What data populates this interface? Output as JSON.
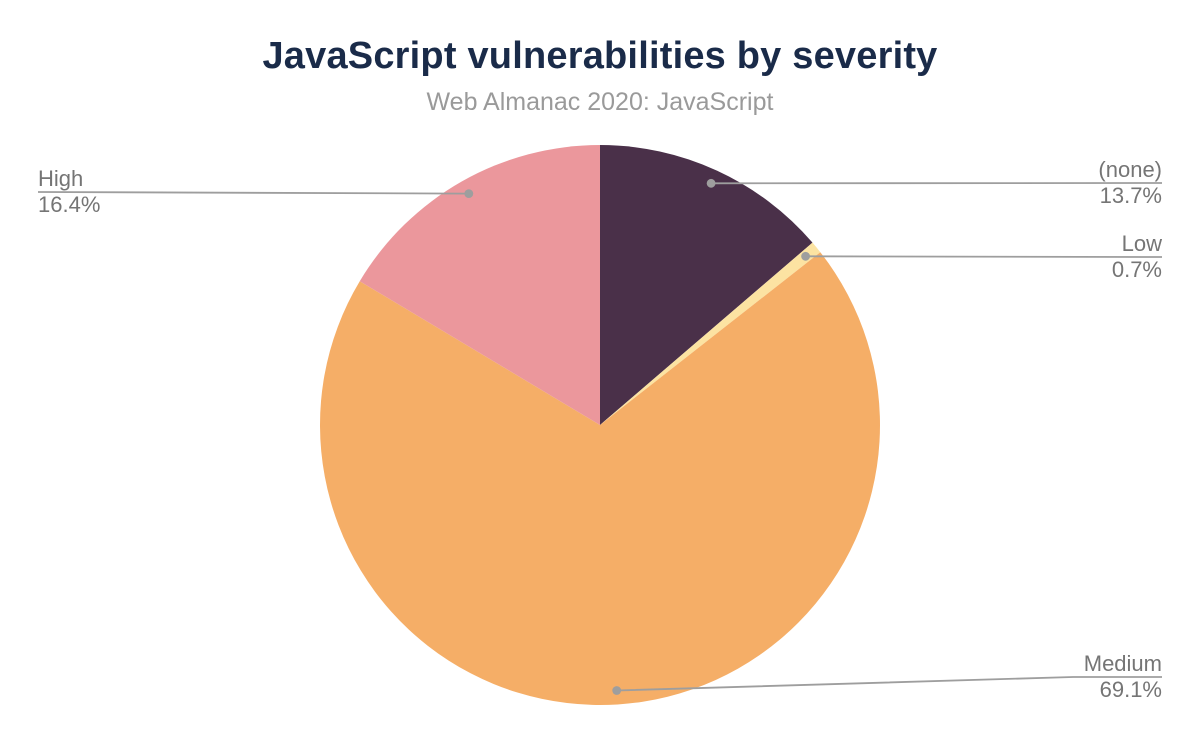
{
  "header": {
    "title": "JavaScript vulnerabilities by severity",
    "subtitle": "Web Almanac 2020: JavaScript"
  },
  "chart_data": {
    "type": "pie",
    "title": "JavaScript vulnerabilities by severity",
    "subtitle": "Web Almanac 2020: JavaScript",
    "unit": "percent",
    "start_angle": "12 o'clock",
    "direction": "clockwise",
    "legend_position": "outside callouts with leader lines",
    "slices": [
      {
        "label": "(none)",
        "value": 13.7,
        "display": "13.7%",
        "color": "#4a3049"
      },
      {
        "label": "Low",
        "value": 0.7,
        "display": "0.7%",
        "color": "#fce3a2"
      },
      {
        "label": "Medium",
        "value": 69.1,
        "display": "69.1%",
        "color": "#f5ae67"
      },
      {
        "label": "High",
        "value": 16.4,
        "display": "16.4%",
        "color": "#eb979c"
      }
    ],
    "colors": {
      "title_text": "#1a2b49",
      "subtitle_text": "#9a9a9a",
      "callout_text": "#757575",
      "leader_line": "#9e9e9e"
    }
  }
}
